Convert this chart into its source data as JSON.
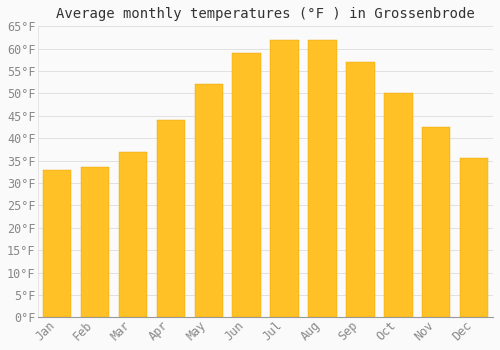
{
  "title": "Average monthly temperatures (°F ) in Grossenbrode",
  "months": [
    "Jan",
    "Feb",
    "Mar",
    "Apr",
    "May",
    "Jun",
    "Jul",
    "Aug",
    "Sep",
    "Oct",
    "Nov",
    "Dec"
  ],
  "values": [
    33,
    33.5,
    37,
    44,
    52,
    59,
    62,
    62,
    57,
    50,
    42.5,
    35.5
  ],
  "bar_color_top": "#FFC125",
  "bar_color_bottom": "#FFB000",
  "bar_edge_color": "#E8A000",
  "background_color": "#FAFAFA",
  "grid_color": "#DDDDDD",
  "ylim": [
    0,
    65
  ],
  "yticks": [
    0,
    5,
    10,
    15,
    20,
    25,
    30,
    35,
    40,
    45,
    50,
    55,
    60,
    65
  ],
  "title_fontsize": 10,
  "tick_fontsize": 8.5,
  "tick_label_color": "#888888",
  "title_color": "#333333"
}
